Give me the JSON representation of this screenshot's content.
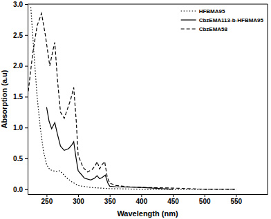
{
  "chart_data": {
    "type": "line",
    "x_label": "Wavelength (nm)",
    "y_label": "Absorption (a.u)",
    "xlim": [
      220,
      600
    ],
    "xticks": [
      250,
      300,
      350,
      400,
      450,
      500,
      550
    ],
    "ylim": [
      -0.08,
      3.0
    ],
    "yticks": [
      {
        "value": 0,
        "label": "0.0"
      },
      {
        "value": 0.5,
        "label": "0.5"
      },
      {
        "value": 1,
        "label": "1.0"
      },
      {
        "value": 1.5,
        "label": "1.5"
      },
      {
        "value": 2,
        "label": "2.0"
      },
      {
        "value": 2.5,
        "label": "2.5"
      },
      {
        "value": 3,
        "label": "3.0"
      }
    ],
    "legend": "top-right",
    "grid": false,
    "series": [
      {
        "name": "HFBMA95",
        "color": "#000000",
        "line_style": "dotted",
        "x": [
          225,
          230,
          235,
          240,
          245,
          250,
          255,
          260,
          265,
          270,
          275,
          280,
          285,
          290,
          300,
          320,
          350,
          400,
          450,
          500,
          550
        ],
        "values": [
          2.95,
          2.2,
          1.5,
          1.0,
          0.62,
          0.4,
          0.32,
          0.3,
          0.29,
          0.3,
          0.26,
          0.2,
          0.16,
          0.12,
          0.06,
          0.03,
          0.01,
          0.0,
          0.0,
          0.0,
          0.0
        ]
      },
      {
        "name": "CbzEMA113-b-HFBMA95",
        "color": "#000000",
        "line_style": "solid",
        "x": [
          250,
          254,
          258,
          263,
          267,
          272,
          278,
          285,
          290,
          293,
          296,
          300,
          310,
          320,
          326,
          330,
          334,
          338,
          343,
          347,
          350,
          360,
          400,
          450
        ],
        "values": [
          1.33,
          1.1,
          0.98,
          1.08,
          0.9,
          0.7,
          0.63,
          0.66,
          0.72,
          0.77,
          0.55,
          0.3,
          0.18,
          0.15,
          0.18,
          0.22,
          0.17,
          0.19,
          0.23,
          0.1,
          0.05,
          0.04,
          0.03,
          0.0
        ]
      },
      {
        "name": "CbzEMA58",
        "color": "#000000",
        "line_style": "dashed",
        "x": [
          220,
          228,
          235,
          242,
          248,
          255,
          260,
          263,
          267,
          272,
          278,
          283,
          288,
          293,
          297,
          300,
          308,
          315,
          322,
          327,
          330,
          334,
          338,
          342,
          346,
          350,
          360,
          380,
          400,
          450,
          500,
          550
        ],
        "values": [
          1.5,
          2.2,
          2.65,
          2.85,
          2.5,
          2.0,
          2.25,
          2.38,
          1.8,
          1.25,
          1.15,
          1.3,
          1.45,
          1.65,
          1.1,
          0.55,
          0.35,
          0.28,
          0.32,
          0.38,
          0.45,
          0.33,
          0.4,
          0.45,
          0.2,
          0.1,
          0.06,
          0.04,
          0.03,
          0.02,
          0.0,
          0.0
        ]
      }
    ]
  }
}
